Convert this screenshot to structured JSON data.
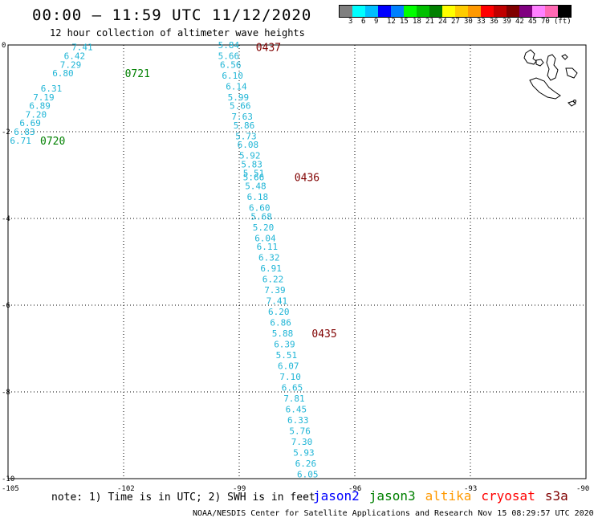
{
  "title": "00:00 – 11:59 UTC 11/12/2020",
  "subtitle": "12 hour collection of altimeter wave heights",
  "colorbar": {
    "colors": [
      "#7f7f7f",
      "#00ffff",
      "#00bfff",
      "#0000ff",
      "#0080ff",
      "#00ff00",
      "#00c000",
      "#008000",
      "#ffff00",
      "#ffcc00",
      "#ff9900",
      "#ff0000",
      "#c00000",
      "#800000",
      "#800080",
      "#ff80ff",
      "#ff69b4",
      "#000000"
    ],
    "labels": [
      "3",
      "6",
      "9",
      "12",
      "15",
      "18",
      "21",
      "24",
      "27",
      "30",
      "33",
      "36",
      "39",
      "42",
      "45",
      "70",
      "(ft)"
    ]
  },
  "axes": {
    "x_ticks": [
      "-105",
      "-102",
      "-99",
      "-96",
      "-93",
      "-90"
    ],
    "y_ticks": [
      "0",
      "-2",
      "-4",
      "-6",
      "-8",
      "-10"
    ],
    "lon_range": [
      -105,
      -90
    ],
    "lat_range": [
      -10,
      0
    ]
  },
  "track1": {
    "color": "#1fb5d6",
    "points": [
      {
        "lon": -103.1,
        "lat": -0.05,
        "v": "7.41"
      },
      {
        "lon": -103.3,
        "lat": -0.25,
        "v": "6.42"
      },
      {
        "lon": -103.4,
        "lat": -0.45,
        "v": "7.29"
      },
      {
        "lon": -103.6,
        "lat": -0.65,
        "v": "6.80"
      },
      {
        "lon": -103.9,
        "lat": -1.0,
        "v": "6.31"
      },
      {
        "lon": -104.1,
        "lat": -1.2,
        "v": "7.19"
      },
      {
        "lon": -104.2,
        "lat": -1.4,
        "v": "6.89"
      },
      {
        "lon": -104.3,
        "lat": -1.6,
        "v": "7.20"
      },
      {
        "lon": -104.45,
        "lat": -1.8,
        "v": "6.69"
      },
      {
        "lon": -104.6,
        "lat": -2.0,
        "v": "6.83"
      },
      {
        "lon": -104.7,
        "lat": -2.2,
        "v": "6.71"
      }
    ],
    "time_labels": [
      {
        "lon": -101.8,
        "lat": -0.65,
        "t": "0721",
        "color": "#008000"
      },
      {
        "lon": -104.0,
        "lat": -2.2,
        "t": "0720",
        "color": "#008000"
      }
    ]
  },
  "track2": {
    "color": "#1fb5d6",
    "points": [
      {
        "lon": -99.3,
        "lat": 0.0,
        "v": "5.84"
      },
      {
        "lon": -99.3,
        "lat": -0.25,
        "v": "5.66"
      },
      {
        "lon": -99.25,
        "lat": -0.45,
        "v": "6.56"
      },
      {
        "lon": -99.2,
        "lat": -0.7,
        "v": "6.10"
      },
      {
        "lon": -99.1,
        "lat": -0.95,
        "v": "6.14"
      },
      {
        "lon": -99.05,
        "lat": -1.2,
        "v": "5.99"
      },
      {
        "lon": -99.0,
        "lat": -1.4,
        "v": "5.66"
      },
      {
        "lon": -98.95,
        "lat": -1.65,
        "v": "7.63"
      },
      {
        "lon": -98.9,
        "lat": -1.85,
        "v": "5.86"
      },
      {
        "lon": -98.85,
        "lat": -2.1,
        "v": "5.73"
      },
      {
        "lon": -98.8,
        "lat": -2.3,
        "v": "6.08"
      },
      {
        "lon": -98.75,
        "lat": -2.55,
        "v": "5.92"
      },
      {
        "lon": -98.7,
        "lat": -2.75,
        "v": "5.83"
      },
      {
        "lon": -98.65,
        "lat": -2.95,
        "v": "5.51"
      },
      {
        "lon": -98.65,
        "lat": -3.05,
        "v": "5.66"
      },
      {
        "lon": -98.6,
        "lat": -3.25,
        "v": "5.48"
      },
      {
        "lon": -98.55,
        "lat": -3.5,
        "v": "6.18"
      },
      {
        "lon": -98.5,
        "lat": -3.75,
        "v": "6.60"
      },
      {
        "lon": -98.45,
        "lat": -3.95,
        "v": "5.68"
      },
      {
        "lon": -98.4,
        "lat": -4.2,
        "v": "5.20"
      },
      {
        "lon": -98.35,
        "lat": -4.45,
        "v": "6.04"
      },
      {
        "lon": -98.3,
        "lat": -4.65,
        "v": "6.11"
      },
      {
        "lon": -98.25,
        "lat": -4.9,
        "v": "6.32"
      },
      {
        "lon": -98.2,
        "lat": -5.15,
        "v": "6.91"
      },
      {
        "lon": -98.15,
        "lat": -5.4,
        "v": "6.22"
      },
      {
        "lon": -98.1,
        "lat": -5.65,
        "v": "7.39"
      },
      {
        "lon": -98.05,
        "lat": -5.9,
        "v": "7.41"
      },
      {
        "lon": -98.0,
        "lat": -6.15,
        "v": "6.20"
      },
      {
        "lon": -97.95,
        "lat": -6.4,
        "v": "6.86"
      },
      {
        "lon": -97.9,
        "lat": -6.65,
        "v": "5.88"
      },
      {
        "lon": -97.85,
        "lat": -6.9,
        "v": "6.39"
      },
      {
        "lon": -97.8,
        "lat": -7.15,
        "v": "5.51"
      },
      {
        "lon": -97.75,
        "lat": -7.4,
        "v": "6.07"
      },
      {
        "lon": -97.7,
        "lat": -7.65,
        "v": "7.10"
      },
      {
        "lon": -97.65,
        "lat": -7.9,
        "v": "6.65"
      },
      {
        "lon": -97.6,
        "lat": -8.15,
        "v": "7.81"
      },
      {
        "lon": -97.55,
        "lat": -8.4,
        "v": "6.45"
      },
      {
        "lon": -97.5,
        "lat": -8.65,
        "v": "6.33"
      },
      {
        "lon": -97.45,
        "lat": -8.9,
        "v": "5.76"
      },
      {
        "lon": -97.4,
        "lat": -9.15,
        "v": "7.30"
      },
      {
        "lon": -97.35,
        "lat": -9.4,
        "v": "5.93"
      },
      {
        "lon": -97.3,
        "lat": -9.65,
        "v": "6.26"
      },
      {
        "lon": -97.25,
        "lat": -9.9,
        "v": "6.05"
      }
    ],
    "time_labels": [
      {
        "lon": -98.4,
        "lat": -0.05,
        "t": "0437",
        "color": "#800000"
      },
      {
        "lon": -97.4,
        "lat": -3.05,
        "t": "0436",
        "color": "#800000"
      },
      {
        "lon": -96.95,
        "lat": -6.65,
        "t": "0435",
        "color": "#800000"
      }
    ]
  },
  "note": "note: 1) Time is in UTC; 2) SWH is in feet",
  "legend": [
    {
      "name": "jason2",
      "color": "#0000ff"
    },
    {
      "name": "jason3",
      "color": "#008000"
    },
    {
      "name": "altika",
      "color": "#ff9900"
    },
    {
      "name": "cryosat",
      "color": "#ff0000"
    },
    {
      "name": "s3a",
      "color": "#800000"
    }
  ],
  "credit": "NOAA/NESDIS Center for Satellite Applications and Research   Nov 15 08:29:57 UTC 2020"
}
